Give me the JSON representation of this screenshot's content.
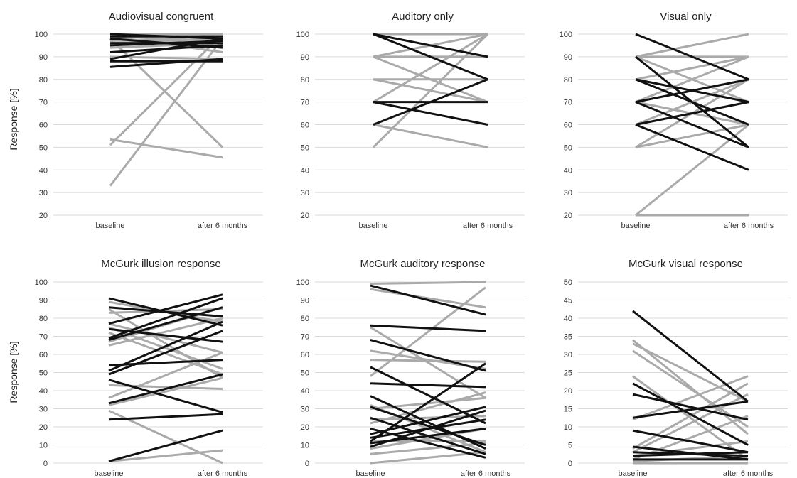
{
  "figure": {
    "ylabel": "Response [%]"
  },
  "chart_data": [
    {
      "type": "line",
      "title": "Audiovisual congruent",
      "categories": [
        "baseline",
        "after 6 months"
      ],
      "ylim": [
        20,
        100
      ],
      "ystep": 10,
      "grid": true,
      "series_colors": {
        "dark": "#111111",
        "light": "#aaaaaa"
      },
      "series": [
        {
          "values": [
            100,
            98
          ],
          "shade": "dark"
        },
        {
          "values": [
            99,
            99
          ],
          "shade": "dark"
        },
        {
          "values": [
            98,
            94
          ],
          "shade": "dark"
        },
        {
          "values": [
            96,
            96
          ],
          "shade": "dark"
        },
        {
          "values": [
            95,
            97
          ],
          "shade": "dark"
        },
        {
          "values": [
            92,
            95
          ],
          "shade": "dark"
        },
        {
          "values": [
            89,
            98
          ],
          "shade": "dark"
        },
        {
          "values": [
            88,
            88
          ],
          "shade": "dark"
        },
        {
          "values": [
            85.5,
            89
          ],
          "shade": "dark"
        },
        {
          "values": [
            100,
            100
          ],
          "shade": "light"
        },
        {
          "values": [
            99,
            92
          ],
          "shade": "light"
        },
        {
          "values": [
            98,
            50
          ],
          "shade": "light"
        },
        {
          "values": [
            97,
            99
          ],
          "shade": "light"
        },
        {
          "values": [
            96,
            98
          ],
          "shade": "light"
        },
        {
          "values": [
            95,
            100
          ],
          "shade": "light"
        },
        {
          "values": [
            94,
            96
          ],
          "shade": "light"
        },
        {
          "values": [
            90,
            89
          ],
          "shade": "light"
        },
        {
          "values": [
            53.5,
            45.5
          ],
          "shade": "light"
        },
        {
          "values": [
            51,
            100
          ],
          "shade": "light"
        },
        {
          "values": [
            33,
            98
          ],
          "shade": "light"
        }
      ]
    },
    {
      "type": "line",
      "title": "Auditory only",
      "categories": [
        "baseline",
        "after 6 months"
      ],
      "ylim": [
        20,
        100
      ],
      "ystep": 10,
      "grid": true,
      "series_colors": {
        "dark": "#111111",
        "light": "#aaaaaa"
      },
      "series": [
        {
          "values": [
            100,
            90
          ],
          "shade": "dark"
        },
        {
          "values": [
            100,
            80
          ],
          "shade": "dark"
        },
        {
          "values": [
            70,
            70
          ],
          "shade": "dark"
        },
        {
          "values": [
            70,
            60
          ],
          "shade": "dark"
        },
        {
          "values": [
            60,
            80
          ],
          "shade": "dark"
        },
        {
          "values": [
            100,
            100
          ],
          "shade": "light"
        },
        {
          "values": [
            90,
            100
          ],
          "shade": "light"
        },
        {
          "values": [
            90,
            90
          ],
          "shade": "light"
        },
        {
          "values": [
            90,
            70
          ],
          "shade": "light"
        },
        {
          "values": [
            80,
            80
          ],
          "shade": "light"
        },
        {
          "values": [
            80,
            70
          ],
          "shade": "light"
        },
        {
          "values": [
            70,
            100
          ],
          "shade": "light"
        },
        {
          "values": [
            60,
            50
          ],
          "shade": "light"
        },
        {
          "values": [
            50,
            100
          ],
          "shade": "light"
        }
      ]
    },
    {
      "type": "line",
      "title": "Visual only",
      "categories": [
        "baseline",
        "after 6 months"
      ],
      "ylim": [
        20,
        100
      ],
      "ystep": 10,
      "grid": true,
      "series_colors": {
        "dark": "#111111",
        "light": "#aaaaaa"
      },
      "series": [
        {
          "values": [
            100,
            80
          ],
          "shade": "dark"
        },
        {
          "values": [
            90,
            50
          ],
          "shade": "dark"
        },
        {
          "values": [
            80,
            60
          ],
          "shade": "dark"
        },
        {
          "values": [
            80,
            70
          ],
          "shade": "dark"
        },
        {
          "values": [
            70,
            80
          ],
          "shade": "dark"
        },
        {
          "values": [
            70,
            50
          ],
          "shade": "dark"
        },
        {
          "values": [
            60,
            70
          ],
          "shade": "dark"
        },
        {
          "values": [
            60,
            40
          ],
          "shade": "dark"
        },
        {
          "values": [
            90,
            100
          ],
          "shade": "light"
        },
        {
          "values": [
            90,
            70
          ],
          "shade": "light"
        },
        {
          "values": [
            90,
            90
          ],
          "shade": "light"
        },
        {
          "values": [
            80,
            90
          ],
          "shade": "light"
        },
        {
          "values": [
            80,
            60
          ],
          "shade": "light"
        },
        {
          "values": [
            70,
            90
          ],
          "shade": "light"
        },
        {
          "values": [
            70,
            60
          ],
          "shade": "light"
        },
        {
          "values": [
            60,
            80
          ],
          "shade": "light"
        },
        {
          "values": [
            50,
            80
          ],
          "shade": "light"
        },
        {
          "values": [
            50,
            60
          ],
          "shade": "light"
        },
        {
          "values": [
            20,
            60
          ],
          "shade": "light"
        },
        {
          "values": [
            20,
            20
          ],
          "shade": "light"
        }
      ]
    },
    {
      "type": "line",
      "title": "McGurk illusion response",
      "categories": [
        "baseline",
        "after 6 months"
      ],
      "ylim": [
        0,
        100
      ],
      "ystep": 10,
      "grid": true,
      "series_colors": {
        "dark": "#111111",
        "light": "#aaaaaa"
      },
      "series": [
        {
          "values": [
            91,
            76
          ],
          "shade": "dark"
        },
        {
          "values": [
            86,
            81
          ],
          "shade": "dark"
        },
        {
          "values": [
            77,
            93
          ],
          "shade": "dark"
        },
        {
          "values": [
            74,
            67
          ],
          "shade": "dark"
        },
        {
          "values": [
            69,
            91
          ],
          "shade": "dark"
        },
        {
          "values": [
            68,
            86
          ],
          "shade": "dark"
        },
        {
          "values": [
            54,
            57
          ],
          "shade": "dark"
        },
        {
          "values": [
            51,
            78
          ],
          "shade": "dark"
        },
        {
          "values": [
            49,
            73
          ],
          "shade": "dark"
        },
        {
          "values": [
            46,
            28
          ],
          "shade": "dark"
        },
        {
          "values": [
            33,
            49
          ],
          "shade": "dark"
        },
        {
          "values": [
            24,
            27
          ],
          "shade": "dark"
        },
        {
          "values": [
            1,
            18
          ],
          "shade": "dark"
        },
        {
          "values": [
            89,
            78
          ],
          "shade": "light"
        },
        {
          "values": [
            85,
            47
          ],
          "shade": "light"
        },
        {
          "values": [
            83,
            85
          ],
          "shade": "light"
        },
        {
          "values": [
            77,
            61
          ],
          "shade": "light"
        },
        {
          "values": [
            75,
            52
          ],
          "shade": "light"
        },
        {
          "values": [
            72,
            49
          ],
          "shade": "light"
        },
        {
          "values": [
            67,
            86
          ],
          "shade": "light"
        },
        {
          "values": [
            65,
            80
          ],
          "shade": "light"
        },
        {
          "values": [
            43,
            41
          ],
          "shade": "light"
        },
        {
          "values": [
            36,
            61
          ],
          "shade": "light"
        },
        {
          "values": [
            32,
            47
          ],
          "shade": "light"
        },
        {
          "values": [
            29,
            0
          ],
          "shade": "light"
        },
        {
          "values": [
            1,
            7
          ],
          "shade": "light"
        }
      ]
    },
    {
      "type": "line",
      "title": "McGurk auditory response",
      "categories": [
        "baseline",
        "after 6 months"
      ],
      "ylim": [
        0,
        100
      ],
      "ystep": 10,
      "grid": true,
      "series_colors": {
        "dark": "#111111",
        "light": "#aaaaaa"
      },
      "series": [
        {
          "values": [
            98,
            82
          ],
          "shade": "dark"
        },
        {
          "values": [
            76,
            73
          ],
          "shade": "dark"
        },
        {
          "values": [
            68,
            51
          ],
          "shade": "dark"
        },
        {
          "values": [
            53,
            22
          ],
          "shade": "dark"
        },
        {
          "values": [
            44,
            42
          ],
          "shade": "dark"
        },
        {
          "values": [
            37,
            8
          ],
          "shade": "dark"
        },
        {
          "values": [
            31,
            10
          ],
          "shade": "dark"
        },
        {
          "values": [
            25,
            5
          ],
          "shade": "dark"
        },
        {
          "values": [
            19,
            3
          ],
          "shade": "dark"
        },
        {
          "values": [
            16,
            31
          ],
          "shade": "dark"
        },
        {
          "values": [
            14,
            24
          ],
          "shade": "dark"
        },
        {
          "values": [
            12,
            55
          ],
          "shade": "dark"
        },
        {
          "values": [
            11,
            19
          ],
          "shade": "dark"
        },
        {
          "values": [
            9,
            29
          ],
          "shade": "dark"
        },
        {
          "values": [
            99,
            100
          ],
          "shade": "light"
        },
        {
          "values": [
            96,
            86
          ],
          "shade": "light"
        },
        {
          "values": [
            75,
            36
          ],
          "shade": "light"
        },
        {
          "values": [
            62,
            52
          ],
          "shade": "light"
        },
        {
          "values": [
            57,
            56
          ],
          "shade": "light"
        },
        {
          "values": [
            48,
            97
          ],
          "shade": "light"
        },
        {
          "values": [
            32,
            6
          ],
          "shade": "light"
        },
        {
          "values": [
            30,
            36
          ],
          "shade": "light"
        },
        {
          "values": [
            24,
            26
          ],
          "shade": "light"
        },
        {
          "values": [
            22,
            39
          ],
          "shade": "light"
        },
        {
          "values": [
            12,
            12
          ],
          "shade": "light"
        },
        {
          "values": [
            8,
            19
          ],
          "shade": "light"
        },
        {
          "values": [
            5,
            11
          ],
          "shade": "light"
        },
        {
          "values": [
            0,
            6
          ],
          "shade": "light"
        }
      ]
    },
    {
      "type": "line",
      "title": "McGurk visual response",
      "categories": [
        "baseline",
        "after 6 months"
      ],
      "ylim": [
        0,
        50
      ],
      "ystep": 5,
      "grid": true,
      "series_colors": {
        "dark": "#111111",
        "light": "#aaaaaa"
      },
      "series": [
        {
          "values": [
            42,
            17
          ],
          "shade": "dark"
        },
        {
          "values": [
            22,
            5
          ],
          "shade": "dark"
        },
        {
          "values": [
            19,
            12
          ],
          "shade": "dark"
        },
        {
          "values": [
            12.5,
            17
          ],
          "shade": "dark"
        },
        {
          "values": [
            9,
            3
          ],
          "shade": "dark"
        },
        {
          "values": [
            4.5,
            1
          ],
          "shade": "dark"
        },
        {
          "values": [
            3,
            2
          ],
          "shade": "dark"
        },
        {
          "values": [
            2,
            3
          ],
          "shade": "dark"
        },
        {
          "values": [
            1,
            1
          ],
          "shade": "dark"
        },
        {
          "values": [
            34,
            8
          ],
          "shade": "light"
        },
        {
          "values": [
            33,
            17
          ],
          "shade": "light"
        },
        {
          "values": [
            31,
            10
          ],
          "shade": "light"
        },
        {
          "values": [
            24,
            1
          ],
          "shade": "light"
        },
        {
          "values": [
            12,
            24
          ],
          "shade": "light"
        },
        {
          "values": [
            4,
            22
          ],
          "shade": "light"
        },
        {
          "values": [
            3,
            19
          ],
          "shade": "light"
        },
        {
          "values": [
            2,
            6
          ],
          "shade": "light"
        },
        {
          "values": [
            1,
            13
          ],
          "shade": "light"
        },
        {
          "values": [
            0.5,
            2
          ],
          "shade": "light"
        },
        {
          "values": [
            0,
            0
          ],
          "shade": "light"
        }
      ]
    }
  ]
}
